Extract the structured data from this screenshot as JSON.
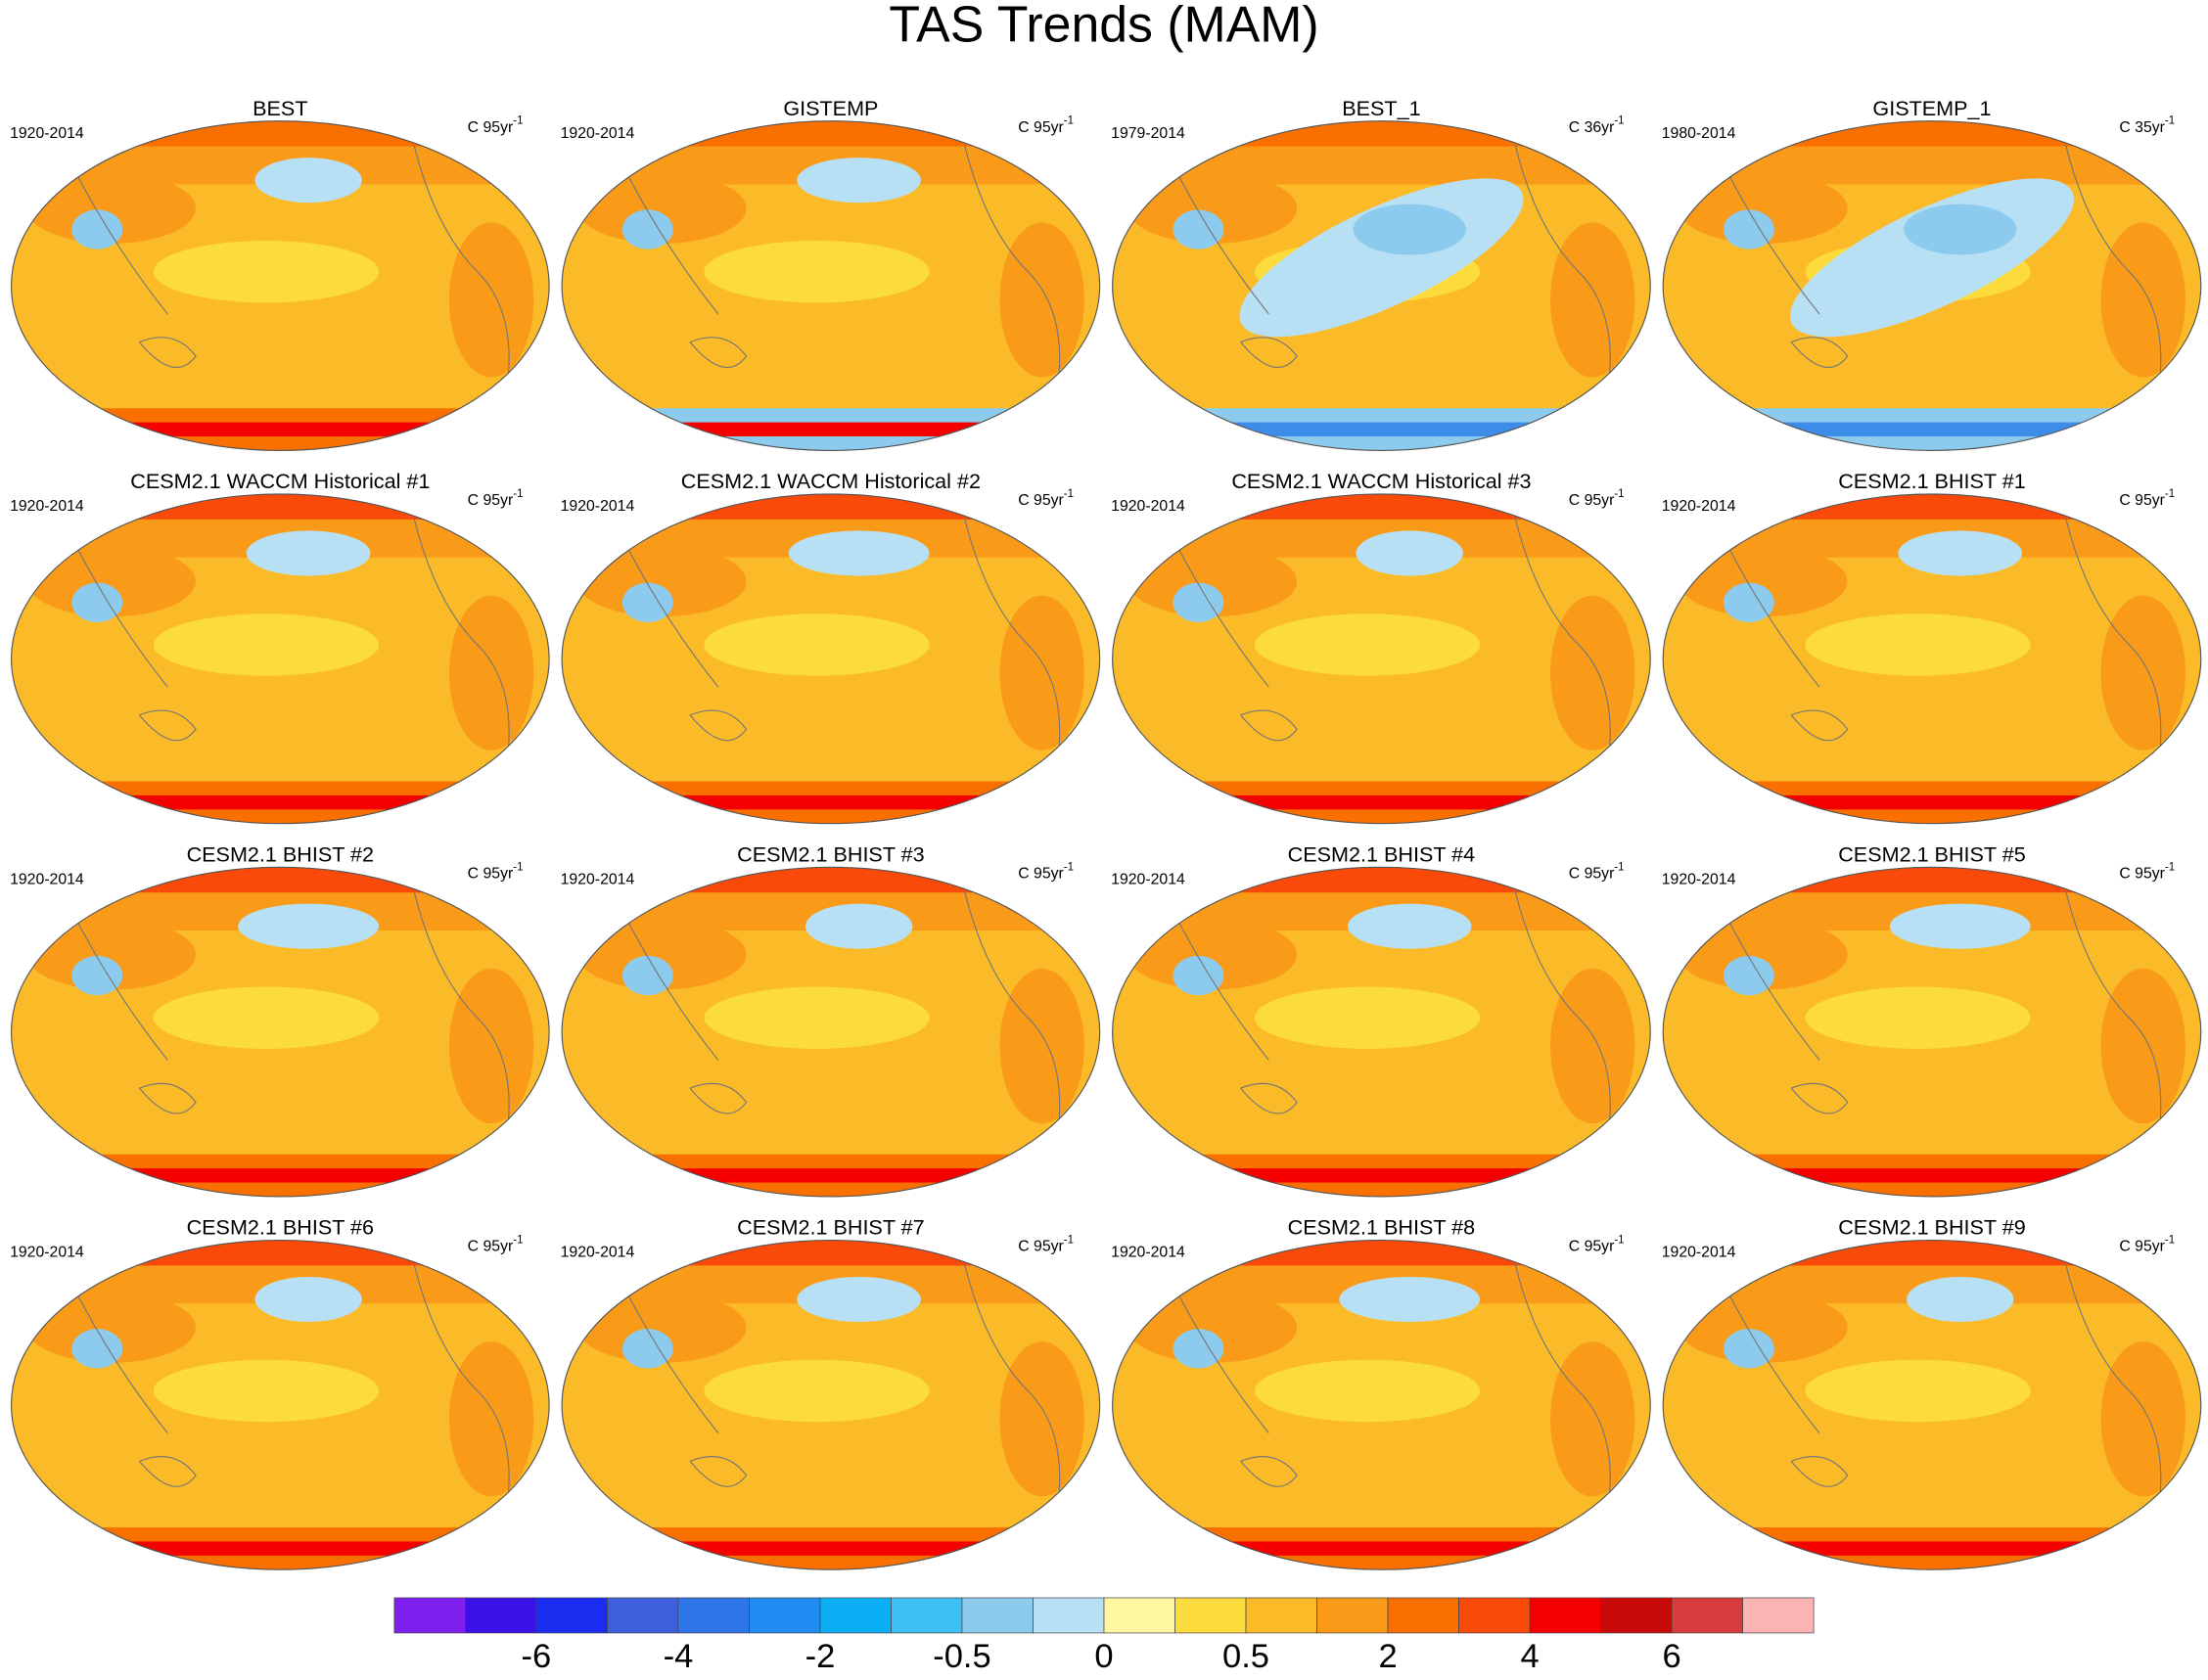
{
  "title": "TAS Trends (MAM)",
  "panels": [
    {
      "title": "BEST",
      "period": "1920-2014",
      "units": {
        "text": "C 95yr",
        "superscript": "-1"
      }
    },
    {
      "title": "GISTEMP",
      "period": "1920-2014",
      "units": {
        "text": "C 95yr",
        "superscript": "-1"
      }
    },
    {
      "title": "BEST_1",
      "period": "1979-2014",
      "units": {
        "text": "C 36yr",
        "superscript": "-1"
      }
    },
    {
      "title": "GISTEMP_1",
      "period": "1980-2014",
      "units": {
        "text": "C 35yr",
        "superscript": "-1"
      }
    },
    {
      "title": "CESM2.1 WACCM Historical #1",
      "period": "1920-2014",
      "units": {
        "text": "C 95yr",
        "superscript": "-1"
      }
    },
    {
      "title": "CESM2.1 WACCM Historical #2",
      "period": "1920-2014",
      "units": {
        "text": "C 95yr",
        "superscript": "-1"
      }
    },
    {
      "title": "CESM2.1 WACCM Historical #3",
      "period": "1920-2014",
      "units": {
        "text": "C 95yr",
        "superscript": "-1"
      }
    },
    {
      "title": "CESM2.1 BHIST #1",
      "period": "1920-2014",
      "units": {
        "text": "C 95yr",
        "superscript": "-1"
      }
    },
    {
      "title": "CESM2.1 BHIST #2",
      "period": "1920-2014",
      "units": {
        "text": "C 95yr",
        "superscript": "-1"
      }
    },
    {
      "title": "CESM2.1 BHIST #3",
      "period": "1920-2014",
      "units": {
        "text": "C 95yr",
        "superscript": "-1"
      }
    },
    {
      "title": "CESM2.1 BHIST #4",
      "period": "1920-2014",
      "units": {
        "text": "C 95yr",
        "superscript": "-1"
      }
    },
    {
      "title": "CESM2.1 BHIST #5",
      "period": "1920-2014",
      "units": {
        "text": "C 95yr",
        "superscript": "-1"
      }
    },
    {
      "title": "CESM2.1 BHIST #6",
      "period": "1920-2014",
      "units": {
        "text": "C 95yr",
        "superscript": "-1"
      }
    },
    {
      "title": "CESM2.1 BHIST #7",
      "period": "1920-2014",
      "units": {
        "text": "C 95yr",
        "superscript": "-1"
      }
    },
    {
      "title": "CESM2.1 BHIST #8",
      "period": "1920-2014",
      "units": {
        "text": "C 95yr",
        "superscript": "-1"
      }
    },
    {
      "title": "CESM2.1 BHIST #9",
      "period": "1920-2014",
      "units": {
        "text": "C 95yr",
        "superscript": "-1"
      }
    }
  ],
  "colorbar": {
    "colors": [
      "#7f20ee",
      "#3a12e8",
      "#1a2cf0",
      "#3c5fdc",
      "#2e76e8",
      "#1e8cf0",
      "#0aaef5",
      "#3fc0f5",
      "#8ccbed",
      "#b8e0f5",
      "#fff8a0",
      "#fcdc3c",
      "#fbbb28",
      "#f99a18",
      "#fa7000",
      "#fa4a0a",
      "#f50000",
      "#c80a0a",
      "#d83c3c",
      "#fbb4b4"
    ],
    "ticks": [
      -6,
      -4,
      -2,
      -0.5,
      0,
      0.5,
      2,
      4,
      6
    ]
  }
}
